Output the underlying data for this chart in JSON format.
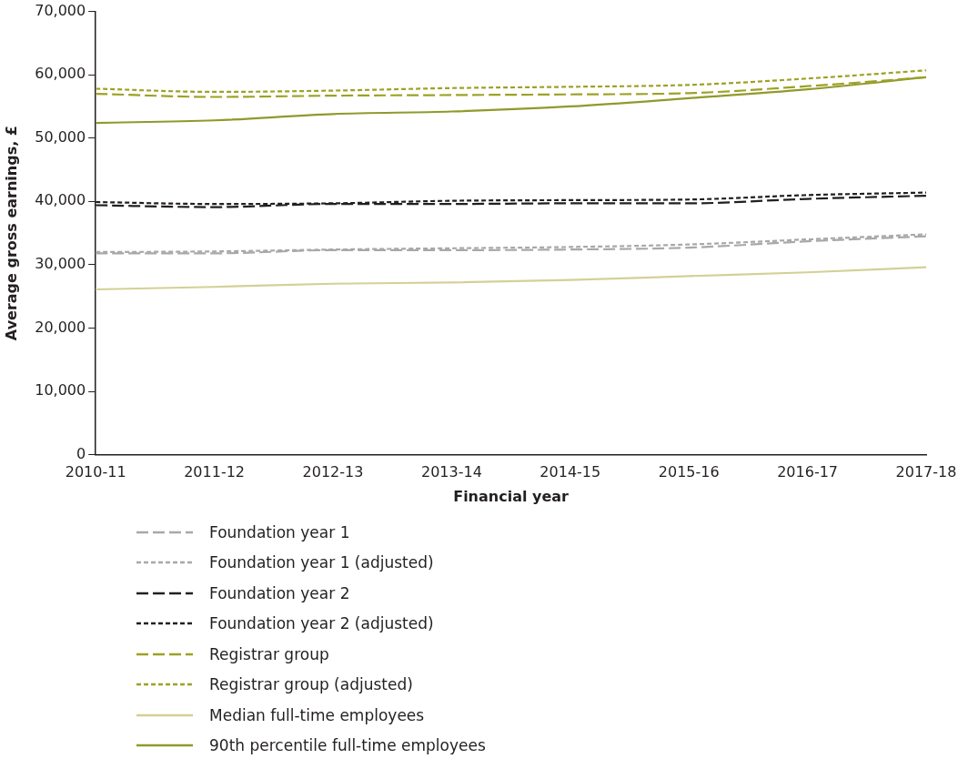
{
  "chart_data": {
    "type": "line",
    "xlabel": "Financial year",
    "ylabel": "Average gross earnings, £",
    "categories": [
      "2010-11",
      "2011-12",
      "2012-13",
      "2013-14",
      "2014-15",
      "2015-16",
      "2016-17",
      "2017-18"
    ],
    "ylim": [
      0,
      70000
    ],
    "yticks": [
      {
        "value": 0,
        "label": "0"
      },
      {
        "value": 10000,
        "label": "10,000"
      },
      {
        "value": 20000,
        "label": "20,000"
      },
      {
        "value": 30000,
        "label": "30,000"
      },
      {
        "value": 40000,
        "label": "40,000"
      },
      {
        "value": 50000,
        "label": "50,000"
      },
      {
        "value": 60000,
        "label": "60,000"
      },
      {
        "value": 70000,
        "label": "70,000"
      }
    ],
    "grid": false,
    "legend": "bottom",
    "marker": "none",
    "series": [
      {
        "name": "Foundation year 1",
        "color": "#a8a8a8",
        "line_style": "dashed",
        "values": [
          31800,
          31800,
          32300,
          32300,
          32400,
          32700,
          33700,
          34500
        ]
      },
      {
        "name": "Foundation year 1 (adjusted)",
        "color": "#a8a8a8",
        "line_style": "dotted",
        "values": [
          32000,
          32100,
          32400,
          32600,
          32800,
          33200,
          34000,
          34800
        ]
      },
      {
        "name": "Foundation year 2",
        "color": "#231f20",
        "line_style": "dashed",
        "values": [
          39400,
          39100,
          39600,
          39600,
          39700,
          39700,
          40400,
          40900
        ]
      },
      {
        "name": "Foundation year 2 (adjusted)",
        "color": "#231f20",
        "line_style": "dotted",
        "values": [
          39900,
          39600,
          39700,
          40100,
          40200,
          40300,
          41000,
          41400
        ]
      },
      {
        "name": "Registrar group",
        "color": "#9ea124",
        "line_style": "dashed",
        "values": [
          57000,
          56500,
          56700,
          56800,
          56900,
          57100,
          58200,
          59600
        ]
      },
      {
        "name": "Registrar group (adjusted)",
        "color": "#9ea124",
        "line_style": "dotted",
        "values": [
          57800,
          57300,
          57500,
          57900,
          58100,
          58400,
          59400,
          60700
        ]
      },
      {
        "name": "Median full-time employees",
        "color": "#d4d096",
        "line_style": "solid",
        "values": [
          26100,
          26500,
          27000,
          27200,
          27600,
          28200,
          28800,
          29600
        ]
      },
      {
        "name": "90th percentile full-time employees",
        "color": "#8f9a2b",
        "line_style": "solid",
        "values": [
          52400,
          52800,
          53800,
          54200,
          55000,
          56300,
          57700,
          59600
        ]
      }
    ]
  }
}
